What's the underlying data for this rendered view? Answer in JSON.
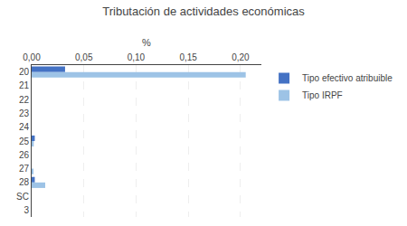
{
  "chart_data": {
    "type": "bar",
    "orientation": "horizontal",
    "title": "Tributación de actividades económicas",
    "xlabel": "%",
    "categories": [
      "20",
      "21",
      "22",
      "23",
      "24",
      "25",
      "26",
      "27",
      "28",
      "SC",
      "3"
    ],
    "series": [
      {
        "name": "Tipo efectivo atribuible",
        "color": "#4472C4",
        "values": [
          0.032,
          0.0,
          0.0,
          0.0,
          0.0,
          0.003,
          0.0,
          0.0,
          0.003,
          0.0,
          0.0
        ]
      },
      {
        "name": "Tipo IRPF",
        "color": "#9DC3E6",
        "values": [
          0.205,
          0.0,
          0.0,
          0.0,
          0.0,
          0.002,
          0.0,
          0.001,
          0.013,
          0.0,
          0.0
        ]
      }
    ],
    "xlim": [
      0.0,
      0.22
    ],
    "xticks": [
      {
        "value": 0.0,
        "label": "0,00"
      },
      {
        "value": 0.05,
        "label": "0,05"
      },
      {
        "value": 0.1,
        "label": "0,10"
      },
      {
        "value": 0.15,
        "label": "0,15"
      },
      {
        "value": 0.2,
        "label": "0,20"
      }
    ],
    "grid": true,
    "legend": "right"
  }
}
